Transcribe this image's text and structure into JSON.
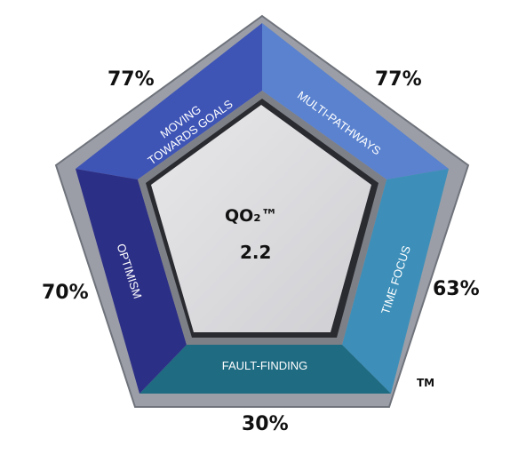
{
  "center": {
    "title": "QO₂™",
    "value": "2.2"
  },
  "segments": [
    {
      "id": "moving",
      "label_lines": [
        "MOVING",
        "TOWARDS GOALS"
      ],
      "percent": "77%",
      "color": "#3f55b6"
    },
    {
      "id": "multi",
      "label_lines": [
        "MULTI-PATHWAYS"
      ],
      "percent": "77%",
      "color": "#5a82cf"
    },
    {
      "id": "time",
      "label_lines": [
        "TIME FOCUS"
      ],
      "percent": "63%",
      "color": "#3d8fb9"
    },
    {
      "id": "fault",
      "label_lines": [
        "FAULT-FINDING"
      ],
      "percent": "30%",
      "color": "#1f6b82"
    },
    {
      "id": "optimism",
      "label_lines": [
        "OPTIMISM"
      ],
      "percent": "70%",
      "color": "#2c2f86"
    }
  ],
  "trademark": "TM"
}
